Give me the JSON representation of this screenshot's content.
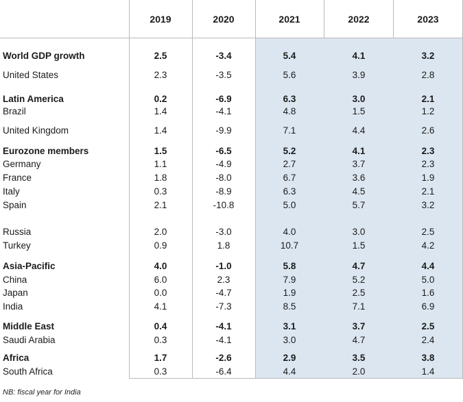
{
  "header": {
    "years": [
      "2019",
      "2020",
      "2021",
      "2022",
      "2023"
    ]
  },
  "rows": [
    {
      "label": "World GDP growth",
      "bold": true,
      "values": [
        "2.5",
        "-3.4",
        "5.4",
        "4.1",
        "3.2"
      ]
    },
    {
      "label": "United States",
      "bold": false,
      "values": [
        "2.3",
        "-3.5",
        "5.6",
        "3.9",
        "2.8"
      ]
    },
    {
      "label": "Latin America",
      "bold": true,
      "values": [
        "0.2",
        "-6.9",
        "6.3",
        "3.0",
        "2.1"
      ]
    },
    {
      "label": "Brazil",
      "bold": false,
      "values": [
        "1.4",
        "-4.1",
        "4.8",
        "1.5",
        "1.2"
      ]
    },
    {
      "label": "United Kingdom",
      "bold": false,
      "values": [
        "1.4",
        "-9.9",
        "7.1",
        "4.4",
        "2.6"
      ]
    },
    {
      "label": "Eurozone members",
      "bold": true,
      "values": [
        "1.5",
        "-6.5",
        "5.2",
        "4.1",
        "2.3"
      ]
    },
    {
      "label": "Germany",
      "bold": false,
      "values": [
        "1.1",
        "-4.9",
        "2.7",
        "3.7",
        "2.3"
      ]
    },
    {
      "label": "France",
      "bold": false,
      "values": [
        "1.8",
        "-8.0",
        "6.7",
        "3.6",
        "1.9"
      ]
    },
    {
      "label": "Italy",
      "bold": false,
      "values": [
        "0.3",
        "-8.9",
        "6.3",
        "4.5",
        "2.1"
      ]
    },
    {
      "label": "Spain",
      "bold": false,
      "values": [
        "2.1",
        "-10.8",
        "5.0",
        "5.7",
        "3.2"
      ]
    },
    {
      "label": "Russia",
      "bold": false,
      "values": [
        "2.0",
        "-3.0",
        "4.0",
        "3.0",
        "2.5"
      ]
    },
    {
      "label": "Turkey",
      "bold": false,
      "values": [
        "0.9",
        "1.8",
        "10.7",
        "1.5",
        "4.2"
      ]
    },
    {
      "label": "Asia-Pacific",
      "bold": true,
      "values": [
        "4.0",
        "-1.0",
        "5.8",
        "4.7",
        "4.4"
      ]
    },
    {
      "label": "China",
      "bold": false,
      "values": [
        "6.0",
        "2.3",
        "7.9",
        "5.2",
        "5.0"
      ]
    },
    {
      "label": "Japan",
      "bold": false,
      "values": [
        "0.0",
        "-4.7",
        "1.9",
        "2.5",
        "1.6"
      ]
    },
    {
      "label": "India",
      "bold": false,
      "values": [
        "4.1",
        "-7.3",
        "8.5",
        "7.1",
        "6.9"
      ]
    },
    {
      "label": "Middle East",
      "bold": true,
      "values": [
        "0.4",
        "-4.1",
        "3.1",
        "3.7",
        "2.5"
      ]
    },
    {
      "label": "Saudi Arabia",
      "bold": false,
      "values": [
        "0.3",
        "-4.1",
        "3.0",
        "4.7",
        "2.4"
      ]
    },
    {
      "label": "Africa",
      "bold": true,
      "values": [
        "1.7",
        "-2.6",
        "2.9",
        "3.5",
        "3.8"
      ]
    },
    {
      "label": "South Africa",
      "bold": false,
      "values": [
        "0.3",
        "-6.4",
        "4.4",
        "2.0",
        "1.4"
      ]
    }
  ],
  "note": "NB: fiscal year for India"
}
